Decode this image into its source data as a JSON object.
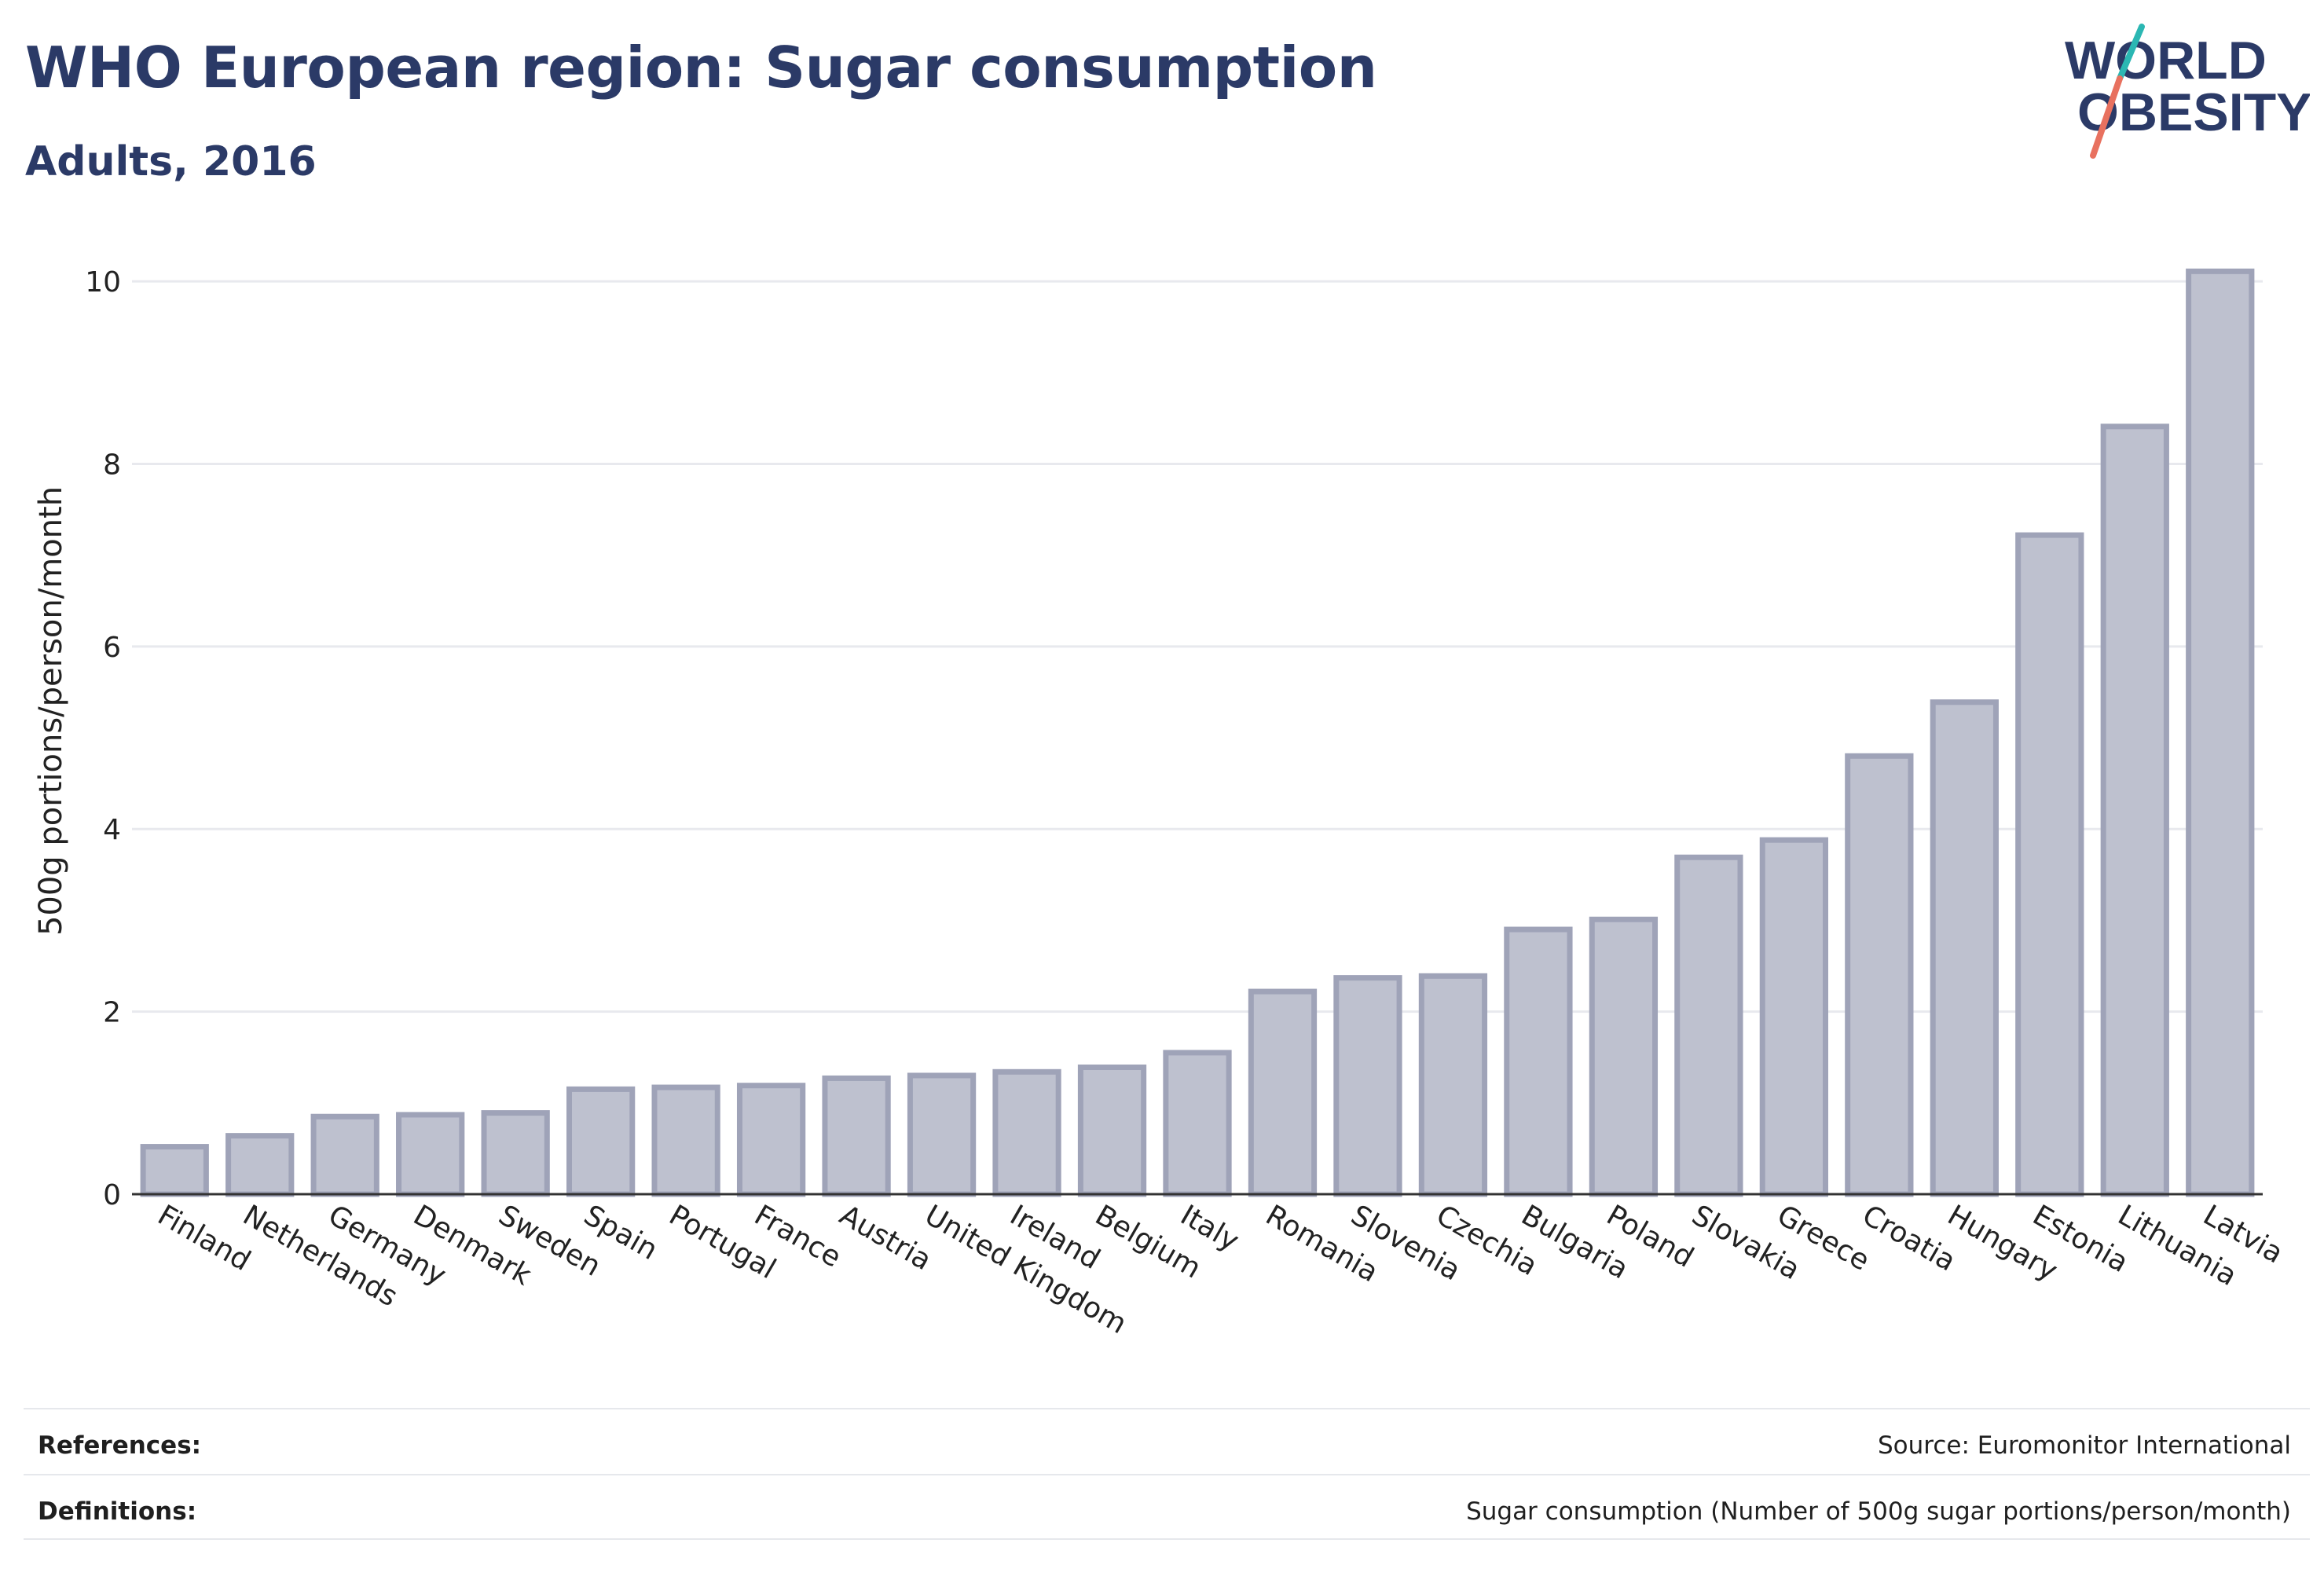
{
  "header": {
    "title": "WHO European region: Sugar consumption",
    "subtitle": "Adults, 2016"
  },
  "logo": {
    "line1": "WORLD",
    "line2": "OBESITY",
    "colors": {
      "text": "#2b3a67",
      "slash_top": "#2bb7b3",
      "slash_bottom": "#e8715f"
    }
  },
  "chart_data": {
    "type": "bar",
    "title": "WHO European region: Sugar consumption",
    "subtitle": "Adults, 2016",
    "xlabel": "",
    "ylabel": "500g portions/person/month",
    "ylim": [
      0,
      10.5
    ],
    "yticks": [
      0,
      2,
      4,
      6,
      8,
      10
    ],
    "grid": true,
    "categories": [
      "Finland",
      "Netherlands",
      "Germany",
      "Denmark",
      "Sweden",
      "Spain",
      "Portugal",
      "France",
      "Austria",
      "United Kingdom",
      "Ireland",
      "Belgium",
      "Italy",
      "Romania",
      "Slovenia",
      "Czechia",
      "Bulgaria",
      "Poland",
      "Slovakia",
      "Greece",
      "Croatia",
      "Hungary",
      "Estonia",
      "Lithuania",
      "Latvia"
    ],
    "values": [
      0.52,
      0.64,
      0.85,
      0.87,
      0.89,
      1.15,
      1.17,
      1.19,
      1.27,
      1.3,
      1.34,
      1.39,
      1.55,
      2.22,
      2.37,
      2.39,
      2.9,
      3.01,
      3.69,
      3.88,
      4.8,
      5.39,
      7.22,
      8.41,
      10.11
    ],
    "colors": {
      "bar_fill": "#bec1cf",
      "bar_stroke": "#9fa3b8",
      "grid": "#e8e9ee",
      "axis": "#333333"
    }
  },
  "footer": {
    "references_label": "References:",
    "references_value": "Source: Euromonitor International",
    "definitions_label": "Definitions:",
    "definitions_value": "Sugar consumption (Number of 500g sugar portions/person/month)"
  }
}
